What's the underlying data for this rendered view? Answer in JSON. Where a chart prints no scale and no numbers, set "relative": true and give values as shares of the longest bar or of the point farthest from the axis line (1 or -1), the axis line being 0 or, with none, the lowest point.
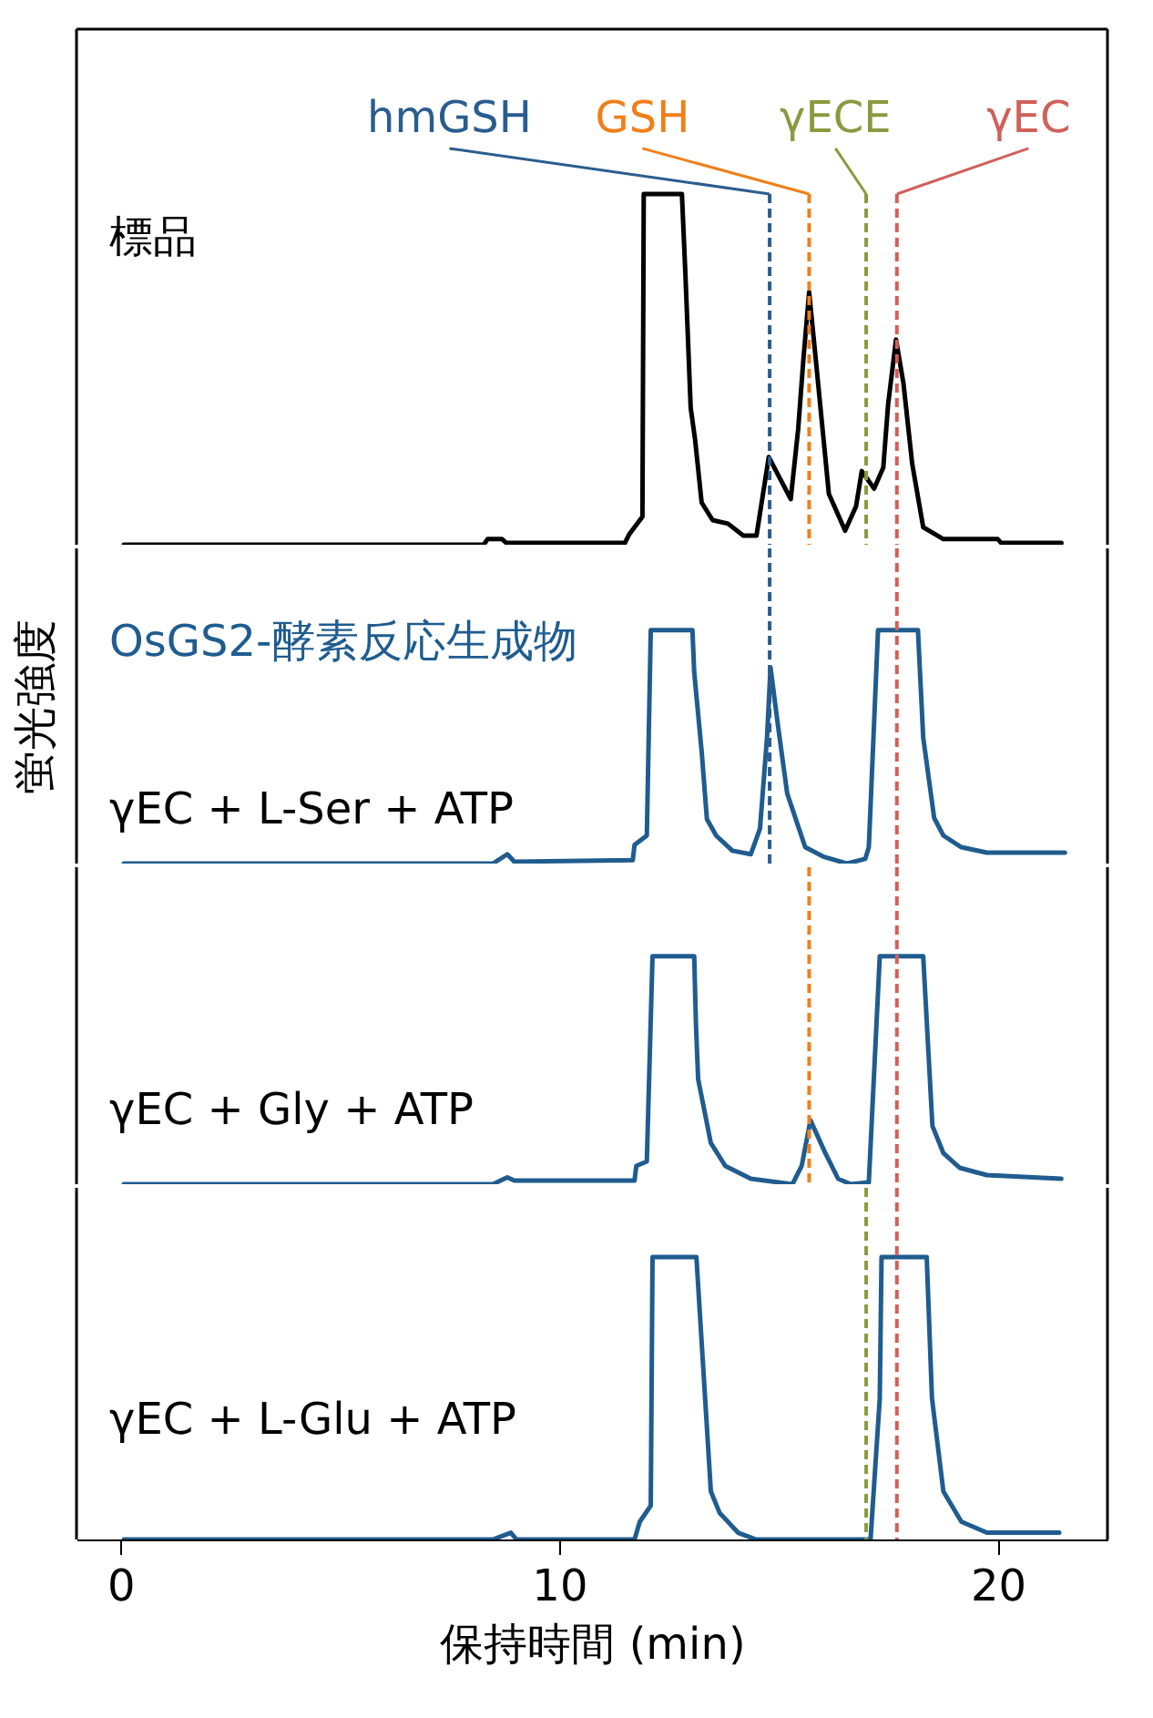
{
  "chart_data": [
    {
      "type": "line",
      "relative": true,
      "xlim": [
        -1,
        22.5
      ],
      "tick_labels": false,
      "line_style": "solid",
      "series": [
        {
          "name": "標品",
          "color": "#000000",
          "x": [
            0.08,
            8.28,
            8.37,
            8.7,
            8.8,
            11.5,
            11.6,
            11.9,
            11.93,
            12.8,
            12.88,
            13.0,
            13.1,
            13.25,
            13.5,
            13.85,
            14.2,
            14.5,
            14.78,
            15.28,
            15.45,
            15.57,
            15.7,
            15.85,
            16.15,
            16.52,
            16.77,
            16.9,
            17.18,
            17.39,
            17.5,
            17.68,
            17.85,
            18.05,
            18.3,
            18.76,
            20.0,
            20.08,
            21.45
          ],
          "values": [
            0,
            0,
            0.016,
            0.016,
            0.005,
            0.005,
            0.03,
            0.08,
            1,
            1,
            0.77,
            0.39,
            0.3,
            0.12,
            0.07,
            0.06,
            0.026,
            0.026,
            0.25,
            0.13,
            0.33,
            0.53,
            0.72,
            0.53,
            0.145,
            0.04,
            0.11,
            0.21,
            0.16,
            0.22,
            0.4,
            0.585,
            0.46,
            0.23,
            0.05,
            0.016,
            0.016,
            0.005,
            0.005
          ]
        }
      ],
      "ref_lines": [
        {
          "axis": "x",
          "value": 14.8,
          "label": "hmGSH",
          "color": "#2a5d8f",
          "line_style": "dashed"
        },
        {
          "axis": "x",
          "value": 15.7,
          "label": "GSH",
          "color": "#f07f1a",
          "line_style": "dashed"
        },
        {
          "axis": "x",
          "value": 17.0,
          "label": "γECE",
          "color": "#8a9a3e",
          "line_style": "dashed"
        },
        {
          "axis": "x",
          "value": 17.7,
          "label": "γEC",
          "color": "#d0605a",
          "line_style": "dashed"
        }
      ]
    },
    {
      "type": "line",
      "relative": true,
      "xlim": [
        -1,
        22.5
      ],
      "tick_labels": false,
      "ylabel": "蛍光強度",
      "annotations": [
        "OsGS2-酵素反応生成物"
      ],
      "series": [
        {
          "name": "γEC + L-Ser + ATP",
          "color": "#1f5c8f",
          "x": [
            0.08,
            7.58,
            8.49,
            8.82,
            8.98,
            11.68,
            11.72,
            12.0,
            12.09,
            13.04,
            13.08,
            13.25,
            13.37,
            13.58,
            13.95,
            14.37,
            14.58,
            14.74,
            14.82,
            14.99,
            15.2,
            15.61,
            16.02,
            16.56,
            16.98,
            17.06,
            17.27,
            18.18,
            18.3,
            18.55,
            18.76,
            19.17,
            19.75,
            21.53
          ],
          "values": [
            0,
            0,
            0,
            0.04,
            0.008,
            0.015,
            0.08,
            0.12,
            1,
            1,
            0.82,
            0.48,
            0.19,
            0.12,
            0.055,
            0.04,
            0.15,
            0.54,
            0.84,
            0.59,
            0.3,
            0.07,
            0.03,
            0,
            0.02,
            0.07,
            1,
            1,
            0.54,
            0.195,
            0.12,
            0.07,
            0.047,
            0.047
          ]
        }
      ],
      "ref_lines": [
        {
          "axis": "x",
          "value": 14.8,
          "color": "#2a5d8f",
          "line_style": "dashed"
        },
        {
          "axis": "x",
          "value": 17.7,
          "color": "#d0605a",
          "line_style": "dashed"
        }
      ]
    },
    {
      "type": "line",
      "relative": true,
      "xlim": [
        -1,
        22.5
      ],
      "tick_labels": false,
      "series": [
        {
          "name": "γEC + Gly + ATP",
          "color": "#1f5c8f",
          "x": [
            0.08,
            8.49,
            8.82,
            8.98,
            11.72,
            11.76,
            12.0,
            12.13,
            13.08,
            13.12,
            13.17,
            13.46,
            13.79,
            14.37,
            15.32,
            15.53,
            15.73,
            16.07,
            16.36,
            16.65,
            17.06,
            17.31,
            18.3,
            18.51,
            18.76,
            19.13,
            19.75,
            21.45
          ],
          "values": [
            0,
            0,
            0.03,
            0.016,
            0.016,
            0.08,
            0.1,
            1,
            1,
            0.7,
            0.46,
            0.18,
            0.08,
            0.024,
            0,
            0.08,
            0.28,
            0.136,
            0.024,
            0,
            0.008,
            1,
            1,
            0.256,
            0.136,
            0.072,
            0.04,
            0.024
          ]
        }
      ],
      "ref_lines": [
        {
          "axis": "x",
          "value": 15.7,
          "color": "#f07f1a",
          "line_style": "dashed"
        },
        {
          "axis": "x",
          "value": 17.7,
          "color": "#d0605a",
          "line_style": "dashed"
        }
      ]
    },
    {
      "type": "line",
      "relative": true,
      "xlim": [
        -1,
        22.5
      ],
      "xticks": [
        0,
        10,
        20
      ],
      "tick_labels": "x",
      "xlabel": "保持時間 (min)",
      "series": [
        {
          "name": "γEC + L-Glu + ATP",
          "color": "#1f5c8f",
          "x": [
            0.08,
            8.49,
            8.9,
            9.03,
            11.72,
            11.84,
            12.09,
            12.13,
            13.13,
            13.46,
            13.66,
            14.08,
            14.49,
            16.23,
            17.1,
            17.31,
            17.35,
            18.38,
            18.5,
            18.76,
            19.17,
            19.75,
            21.4
          ],
          "values": [
            0,
            0,
            0.024,
            0,
            0,
            0.063,
            0.12,
            1,
            1,
            0.17,
            0.094,
            0.024,
            0,
            0,
            0,
            0.5,
            1,
            1,
            0.5,
            0.17,
            0.063,
            0.024,
            0.024
          ]
        }
      ],
      "ref_lines": [
        {
          "axis": "x",
          "value": 17.0,
          "color": "#8a9a3e",
          "line_style": "dashed"
        },
        {
          "axis": "x",
          "value": 17.7,
          "color": "#d0605a",
          "line_style": "dashed"
        }
      ]
    }
  ]
}
